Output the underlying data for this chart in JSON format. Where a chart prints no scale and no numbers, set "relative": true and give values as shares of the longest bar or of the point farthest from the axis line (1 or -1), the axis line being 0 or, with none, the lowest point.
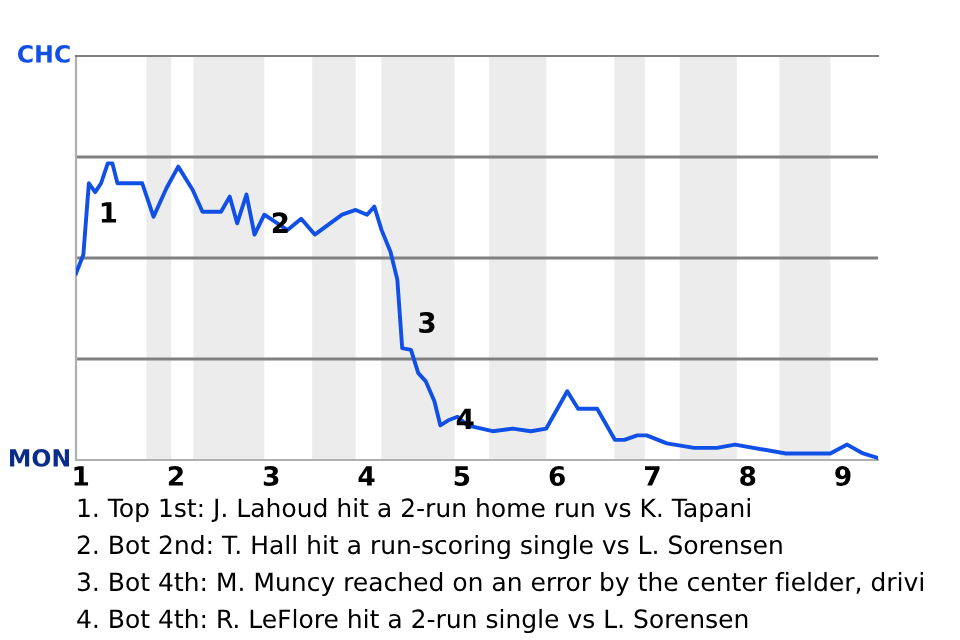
{
  "chart_data": {
    "type": "line",
    "relative": true,
    "x": [
      0.951,
      1.028,
      1.086,
      1.152,
      1.214,
      1.284,
      1.333,
      1.386,
      1.646,
      1.765,
      1.901,
      2.024,
      2.176,
      2.278,
      2.473,
      2.564,
      2.642,
      2.74,
      2.824,
      2.927,
      3.171,
      3.314,
      3.457,
      3.743,
      3.886,
      4.005,
      4.082,
      4.158,
      4.251,
      4.323,
      4.374,
      4.466,
      4.543,
      4.62,
      4.712,
      4.774,
      4.866,
      4.954,
      5.057,
      5.323,
      5.534,
      5.723,
      5.886,
      6.106,
      6.22,
      6.42,
      6.606,
      6.706,
      6.84,
      6.94,
      7.151,
      7.437,
      7.677,
      7.866,
      8.4,
      8.867,
      9.043,
      9.21,
      9.367
    ],
    "series": [
      {
        "color": "#1150e6",
        "values": [
          0.629,
          0.692,
          0.933,
          0.903,
          0.933,
          1,
          1,
          0.933,
          0.933,
          0.82,
          0.917,
          0.989,
          0.91,
          0.837,
          0.837,
          0.888,
          0.798,
          0.895,
          0.76,
          0.827,
          0.775,
          0.813,
          0.76,
          0.827,
          0.843,
          0.827,
          0.854,
          0.775,
          0.702,
          0.608,
          0.377,
          0.371,
          0.293,
          0.266,
          0.198,
          0.117,
          0.135,
          0.146,
          0.117,
          0.097,
          0.106,
          0.097,
          0.106,
          0.232,
          0.173,
          0.173,
          0.068,
          0.068,
          0.083,
          0.083,
          0.056,
          0.041,
          0.041,
          0.052,
          0.022,
          0.022,
          0.052,
          0.022,
          0.007
        ]
      }
    ],
    "xlim": [
      0.951,
      9.367
    ],
    "xticks": [
      1,
      2,
      3,
      4,
      5,
      6,
      7,
      8,
      9
    ],
    "marker": "none",
    "line_style": "solid",
    "ref_lines": [
      {
        "axis": "y",
        "value": 0.3405,
        "color": "#808080"
      },
      {
        "axis": "y",
        "value": 0.681,
        "color": "#808080"
      },
      {
        "axis": "y",
        "value": 1.0215,
        "color": "#808080"
      }
    ],
    "bands": [
      {
        "axis": "x",
        "from": 1.691,
        "to": 1.951,
        "color": "#ececec"
      },
      {
        "axis": "x",
        "from": 2.182,
        "to": 2.927,
        "color": "#ececec"
      },
      {
        "axis": "x",
        "from": 3.429,
        "to": 3.886,
        "color": "#ececec"
      },
      {
        "axis": "x",
        "from": 4.154,
        "to": 4.923,
        "color": "#ececec"
      },
      {
        "axis": "x",
        "from": 5.286,
        "to": 5.886,
        "color": "#ececec"
      },
      {
        "axis": "x",
        "from": 6.6,
        "to": 6.92,
        "color": "#ececec"
      },
      {
        "axis": "x",
        "from": 7.286,
        "to": 7.886,
        "color": "#ececec"
      },
      {
        "axis": "x",
        "from": 8.333,
        "to": 8.867,
        "color": "#ececec"
      }
    ],
    "annotations": [
      {
        "text": "1",
        "x": 1.086,
        "y": 0.817
      },
      {
        "text": "2",
        "x": 2.891,
        "y": 0.782
      },
      {
        "text": "3",
        "x": 4.431,
        "y": 0.446
      },
      {
        "text": "4",
        "x": 4.831,
        "y": 0.121
      },
      "CHC",
      "MON",
      "1. Top 1st: J. Lahoud hit a 2-run home run vs K. Tapani",
      "2. Bot 2nd: T. Hall hit a run-scoring single vs L. Sorensen",
      "3. Bot 4th: M. Muncy reached on an error by the center fielder, drivi",
      "4. Bot 4th: R. LeFlore hit a 2-run single vs L. Sorensen"
    ]
  }
}
